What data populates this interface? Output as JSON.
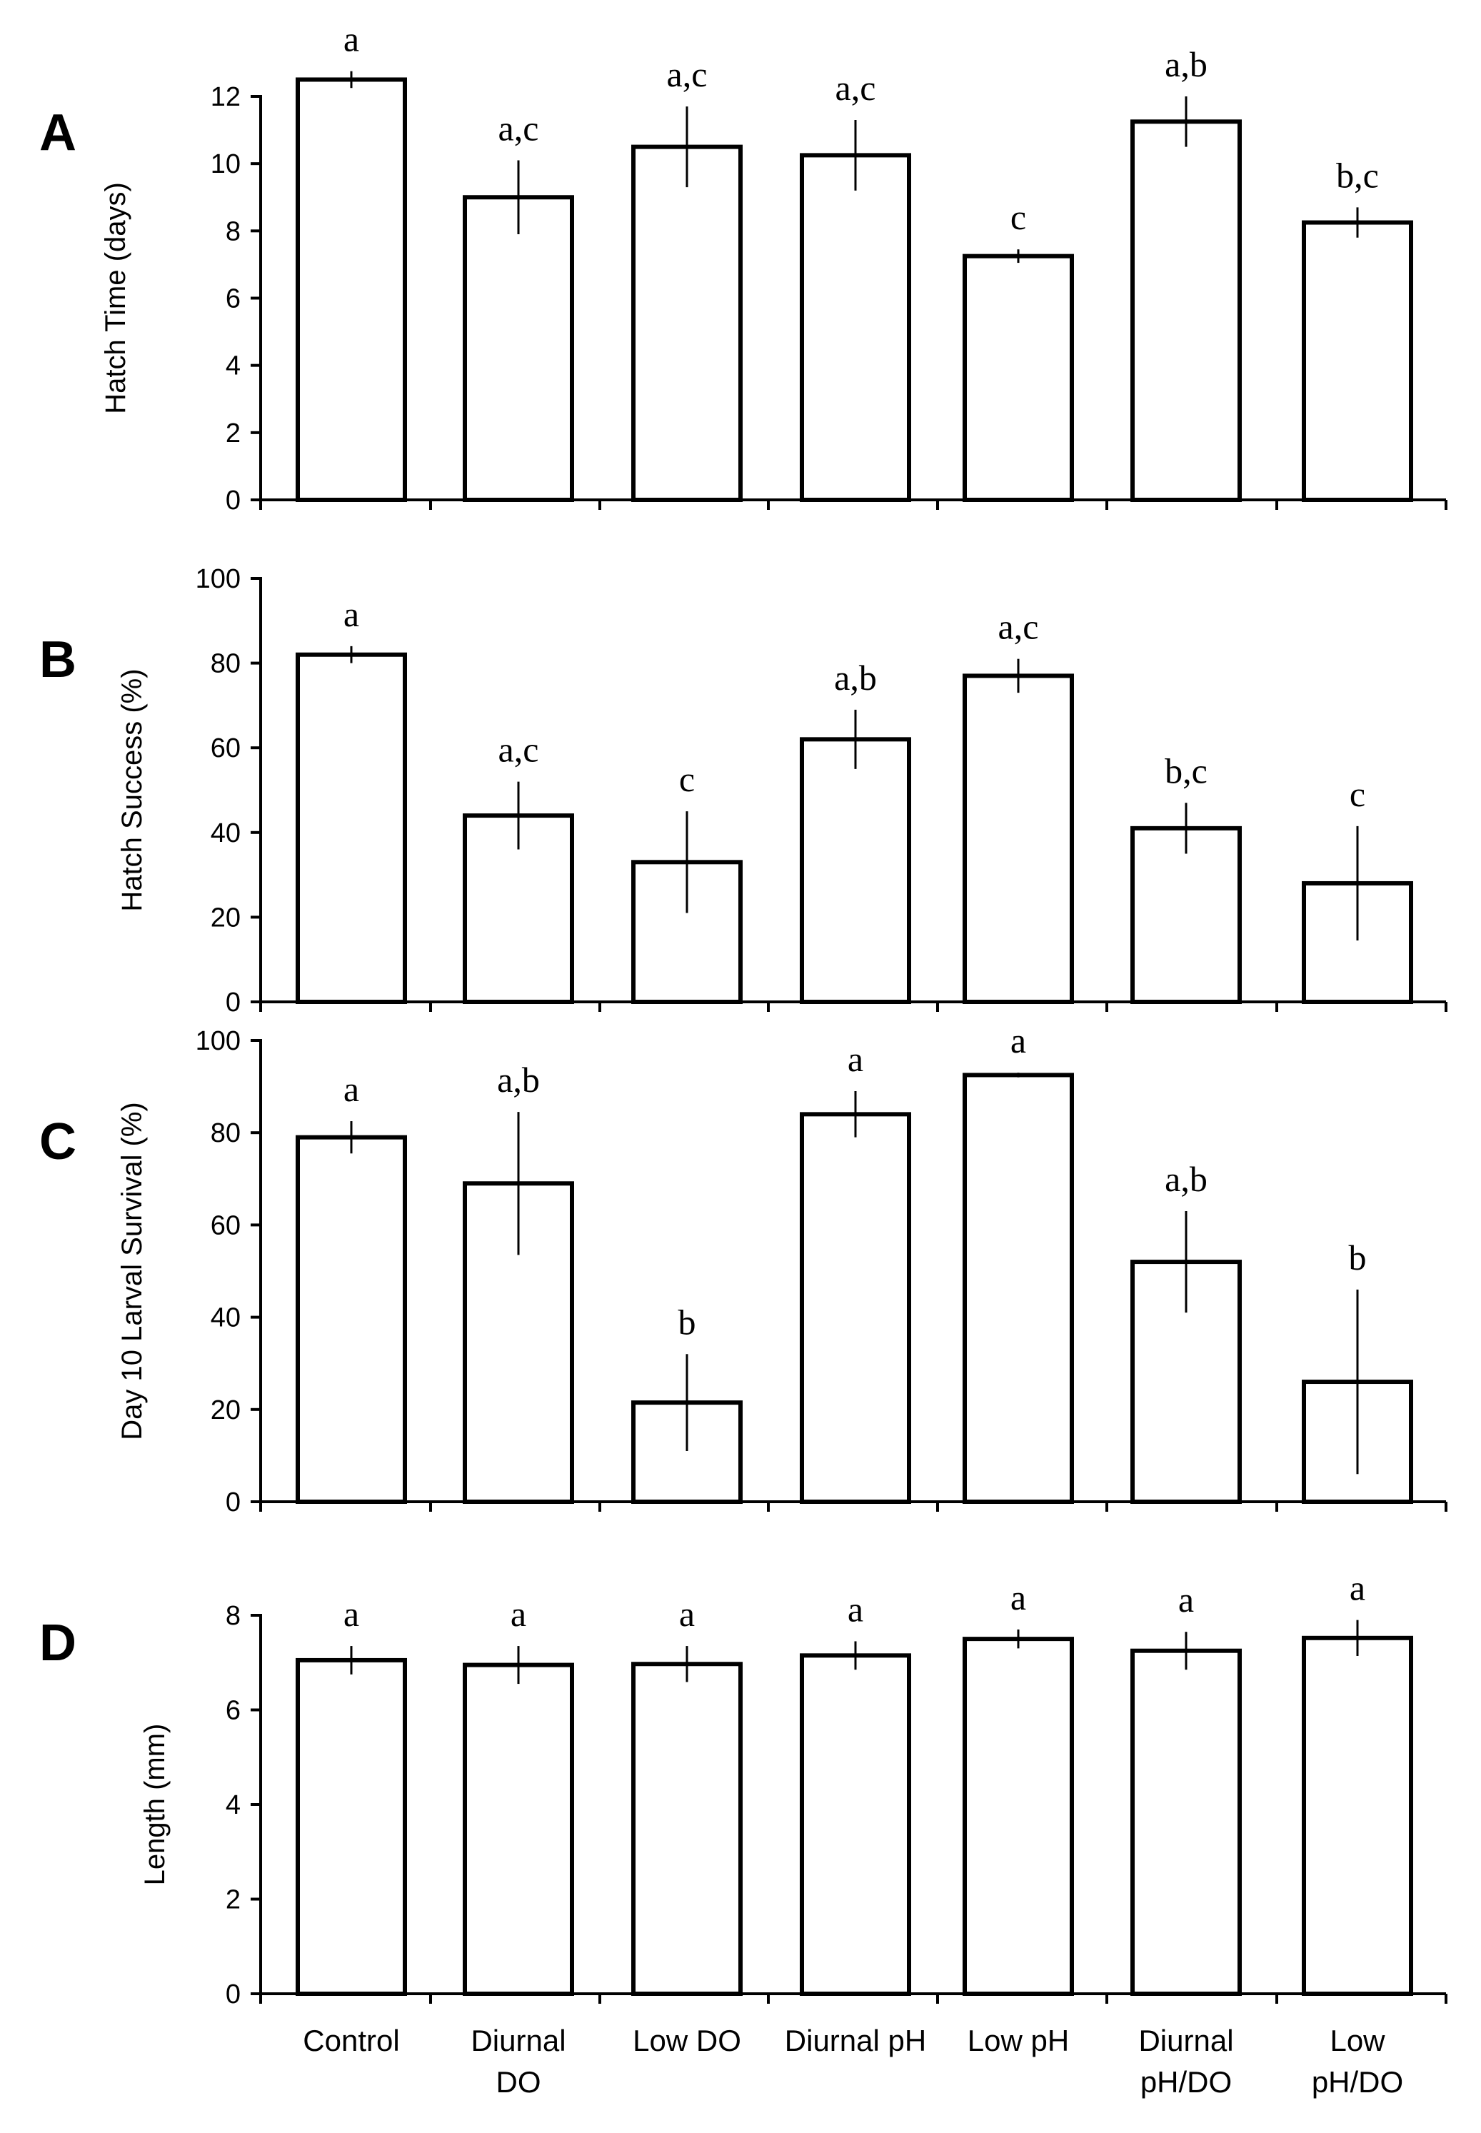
{
  "chart_data": [
    {
      "panel": "A",
      "type": "bar",
      "ylabel": "Hatch Time (days)",
      "ylim": [
        0,
        12
      ],
      "yticks": [
        0,
        2,
        4,
        6,
        8,
        10,
        12
      ],
      "categories": [
        "Control",
        "Diurnal DO",
        "Low DO",
        "Diurnal pH",
        "Low pH",
        "Diurnal pH/DO",
        "Low pH/DO"
      ],
      "values": [
        12.5,
        9.0,
        10.5,
        10.25,
        7.25,
        11.25,
        8.25
      ],
      "errors": [
        0.25,
        1.1,
        1.2,
        1.05,
        0.2,
        0.75,
        0.45
      ],
      "significance": [
        "a",
        "a,c",
        "a,c",
        "a,c",
        "c",
        "a,b",
        "b,c"
      ]
    },
    {
      "panel": "B",
      "type": "bar",
      "ylabel": "Hatch Success (%)",
      "ylim": [
        0,
        100
      ],
      "yticks": [
        0,
        20,
        40,
        60,
        80,
        100
      ],
      "categories": [
        "Control",
        "Diurnal DO",
        "Low DO",
        "Diurnal pH",
        "Low pH",
        "Diurnal pH/DO",
        "Low pH/DO"
      ],
      "values": [
        82,
        44,
        33,
        62,
        77,
        41,
        28
      ],
      "errors": [
        2,
        8,
        12,
        7,
        4,
        6,
        13.5
      ],
      "significance": [
        "a",
        "a,c",
        "c",
        "a,b",
        "a,c",
        "b,c",
        "c"
      ]
    },
    {
      "panel": "C",
      "type": "bar",
      "ylabel": "Day 10 Larval Survival (%)",
      "ylim": [
        0,
        100
      ],
      "yticks": [
        0,
        20,
        40,
        60,
        80,
        100
      ],
      "categories": [
        "Control",
        "Diurnal DO",
        "Low DO",
        "Diurnal pH",
        "Low pH",
        "Diurnal pH/DO",
        "Low pH/DO"
      ],
      "values": [
        79,
        69,
        21.5,
        84,
        92.5,
        52,
        26
      ],
      "errors": [
        3.5,
        15.5,
        10.5,
        5,
        0.5,
        11,
        20
      ],
      "significance": [
        "a",
        "a,b",
        "b",
        "a",
        "a",
        "a,b",
        "b"
      ]
    },
    {
      "panel": "D",
      "type": "bar",
      "ylabel": "Length (mm)",
      "ylim": [
        0,
        8
      ],
      "yticks": [
        0,
        2,
        4,
        6,
        8
      ],
      "categories": [
        "Control",
        "Diurnal DO",
        "Low DO",
        "Diurnal pH",
        "Low pH",
        "Diurnal pH/DO",
        "Low pH/DO"
      ],
      "values": [
        7.05,
        6.95,
        6.97,
        7.15,
        7.5,
        7.25,
        7.52
      ],
      "errors": [
        0.3,
        0.4,
        0.38,
        0.3,
        0.2,
        0.4,
        0.38
      ],
      "significance": [
        "a",
        "a",
        "a",
        "a",
        "a",
        "a",
        "a"
      ]
    }
  ],
  "x_axis_labels": [
    [
      "Control"
    ],
    [
      "Diurnal",
      "DO"
    ],
    [
      "Low DO"
    ],
    [
      "Diurnal pH"
    ],
    [
      "Low pH"
    ],
    [
      "Diurnal",
      "pH/DO"
    ],
    [
      "Low",
      "pH/DO"
    ]
  ]
}
